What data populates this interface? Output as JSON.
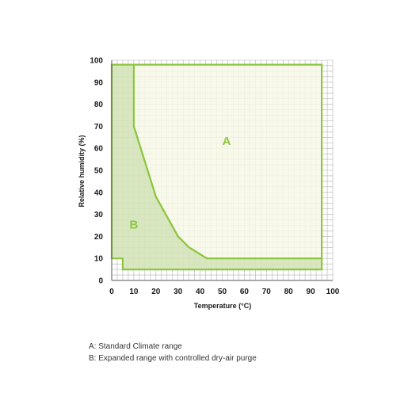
{
  "chart_data": {
    "type": "area",
    "xlabel": "Temperature (°C)",
    "ylabel": "Relative humidity (%)",
    "xlim": [
      0,
      100
    ],
    "ylim": [
      0,
      100
    ],
    "xticks": [
      0,
      10,
      20,
      30,
      40,
      50,
      60,
      70,
      80,
      90,
      100
    ],
    "yticks": [
      0,
      10,
      20,
      30,
      40,
      50,
      60,
      70,
      80,
      90,
      100
    ],
    "minor_grid_step": 2.5,
    "grid": true,
    "regions": [
      {
        "label": "A",
        "label_position": [
          52,
          63
        ],
        "points": [
          [
            10,
            98
          ],
          [
            95,
            98
          ],
          [
            95,
            10
          ],
          [
            43,
            10
          ],
          [
            35,
            15
          ],
          [
            30,
            20
          ],
          [
            20,
            38
          ],
          [
            10,
            70
          ]
        ]
      },
      {
        "label": "B",
        "label_position": [
          10,
          25
        ],
        "points": [
          [
            0,
            98
          ],
          [
            10,
            98
          ],
          [
            10,
            70
          ],
          [
            20,
            38
          ],
          [
            30,
            20
          ],
          [
            35,
            15
          ],
          [
            43,
            10
          ],
          [
            95,
            10
          ],
          [
            95,
            5
          ],
          [
            5,
            5
          ],
          [
            5,
            10
          ],
          [
            0,
            10
          ]
        ]
      }
    ]
  },
  "colors": {
    "outline": "#8dc63f",
    "fill_a": "#f7f8e8",
    "fill_b": "#d4e4b8",
    "grid": "#b3b3b3",
    "axis": "#555555",
    "label_a": "#8dc63f",
    "label_b": "#8dc63f"
  },
  "legend": [
    "A: Standard Climate range",
    "B: Expanded range with controlled dry-air purge"
  ]
}
